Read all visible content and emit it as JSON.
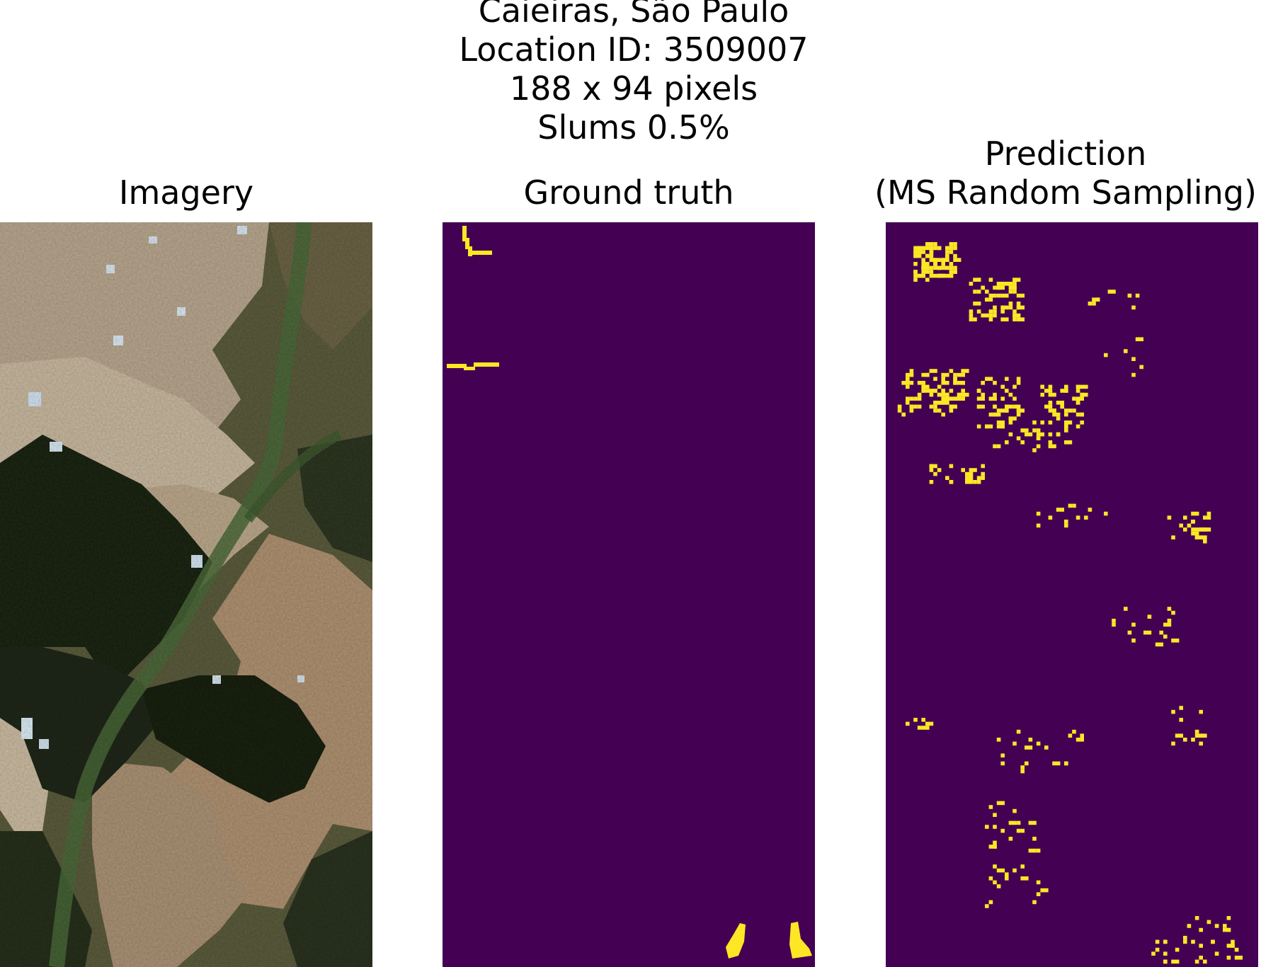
{
  "figure": {
    "location_name": "Caieiras, São Paulo",
    "location_id_line": "Location ID: 3509007",
    "size_line": "188 x 94 pixels",
    "slums_line": "Slums 0.5%"
  },
  "panels": [
    {
      "id": "imagery",
      "title_lines": [
        "Imagery"
      ]
    },
    {
      "id": "ground-truth",
      "title_lines": [
        "Ground truth"
      ]
    },
    {
      "id": "prediction",
      "title_lines": [
        "Prediction",
        "(MS Random Sampling)"
      ]
    }
  ],
  "colors": {
    "mask_background": "#440154",
    "mask_positive": "#fde725",
    "urban": "#b8a58c",
    "vegetation": "#1f2616",
    "river": "#4d6a3c"
  }
}
